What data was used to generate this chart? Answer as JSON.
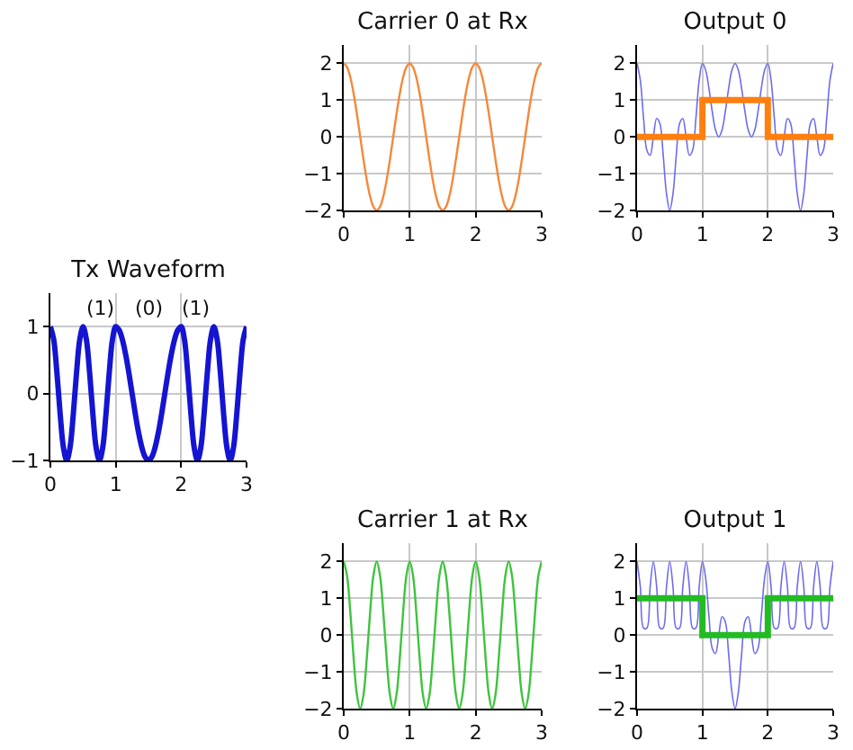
{
  "chart_data": [
    {
      "type": "line",
      "title": "Carrier 0 at Rx",
      "xlim": [
        0,
        3
      ],
      "xticks": [
        0,
        1,
        2,
        3
      ],
      "ylim": [
        -2,
        2.5
      ],
      "yticks": [
        -2,
        -1,
        0,
        1,
        2
      ],
      "grid": true,
      "x": [
        0,
        0.05,
        0.1,
        0.15,
        0.2,
        0.25,
        0.3,
        0.35,
        0.4,
        0.45,
        0.5,
        0.55,
        0.6,
        0.65,
        0.7,
        0.75,
        0.8,
        0.85,
        0.9,
        0.95,
        1,
        1.05,
        1.1,
        1.15,
        1.2,
        1.25,
        1.3,
        1.35,
        1.4,
        1.45,
        1.5,
        1.55,
        1.6,
        1.65,
        1.7,
        1.75,
        1.8,
        1.85,
        1.9,
        1.95,
        2,
        2.05,
        2.1,
        2.15,
        2.2,
        2.25,
        2.3,
        2.35,
        2.4,
        2.45,
        2.5,
        2.55,
        2.6,
        2.65,
        2.7,
        2.75,
        2.8,
        2.85,
        2.9,
        2.95,
        3
      ],
      "series": [
        {
          "color": "#f5883a",
          "values": [
            2,
            1.9,
            1.62,
            1.18,
            0.62,
            0,
            -0.62,
            -1.18,
            -1.62,
            -1.9,
            -2,
            -1.9,
            -1.62,
            -1.18,
            -0.62,
            0,
            0.62,
            1.18,
            1.62,
            1.9,
            2,
            1.9,
            1.62,
            1.18,
            0.62,
            0,
            -0.62,
            -1.18,
            -1.62,
            -1.9,
            -2,
            -1.9,
            -1.62,
            -1.18,
            -0.62,
            0,
            0.62,
            1.18,
            1.62,
            1.9,
            2,
            1.9,
            1.62,
            1.18,
            0.62,
            0,
            -0.62,
            -1.18,
            -1.62,
            -1.9,
            -2,
            -1.9,
            -1.62,
            -1.18,
            -0.62,
            0,
            0.62,
            1.18,
            1.62,
            1.9,
            2
          ]
        }
      ]
    },
    {
      "type": "line",
      "title": "Output 0",
      "xlim": [
        0,
        3
      ],
      "xticks": [
        0,
        1,
        2,
        3
      ],
      "ylim": [
        -2,
        2.5
      ],
      "yticks": [
        -2,
        -1,
        0,
        1,
        2
      ],
      "grid": true,
      "x": [
        0,
        0.05,
        0.1,
        0.15,
        0.2,
        0.25,
        0.3,
        0.35,
        0.4,
        0.45,
        0.5,
        0.55,
        0.6,
        0.65,
        0.7,
        0.75,
        0.8,
        0.85,
        0.9,
        0.95,
        1,
        1.05,
        1.1,
        1.15,
        1.2,
        1.25,
        1.3,
        1.35,
        1.4,
        1.45,
        1.5,
        1.55,
        1.6,
        1.65,
        1.7,
        1.75,
        1.8,
        1.85,
        1.9,
        1.95,
        2,
        2.05,
        2.1,
        2.15,
        2.2,
        2.25,
        2.3,
        2.35,
        2.4,
        2.45,
        2.5,
        2.55,
        2.6,
        2.65,
        2.7,
        2.75,
        2.8,
        2.85,
        2.9,
        2.95,
        3
      ],
      "series": [
        {
          "color": "#6b6bf0",
          "values": [
            2,
            1.54,
            0.5,
            -0.36,
            -0.5,
            0,
            0.5,
            0.36,
            -0.5,
            -1.54,
            -2,
            -1.54,
            -0.5,
            0.36,
            0.5,
            0,
            -0.5,
            -0.36,
            0.5,
            1.54,
            2,
            1.81,
            1.31,
            0.69,
            0.19,
            0,
            0.19,
            0.69,
            1.31,
            1.81,
            2,
            1.81,
            1.31,
            0.69,
            0.19,
            0,
            0.19,
            0.69,
            1.31,
            1.81,
            2,
            1.54,
            0.5,
            -0.36,
            -0.5,
            0,
            0.5,
            0.36,
            -0.5,
            -1.54,
            -2,
            -1.54,
            -0.5,
            0.36,
            0.5,
            0,
            -0.5,
            -0.36,
            0.5,
            1.54,
            2
          ]
        },
        {
          "type": "step",
          "color": "#ff7f0e",
          "x": [
            0,
            1,
            2,
            3
          ],
          "values": [
            0,
            1,
            0,
            0
          ]
        }
      ]
    },
    {
      "type": "line",
      "title": "Tx Waveform",
      "xlim": [
        0,
        3
      ],
      "xticks": [
        0,
        1,
        2,
        3
      ],
      "ylim": [
        -1,
        1.5
      ],
      "yticks": [
        -1,
        0,
        1
      ],
      "grid": true,
      "annotations": [
        "(1)",
        "(0)",
        "(1)"
      ],
      "x": [
        0,
        0.05,
        0.1,
        0.15,
        0.2,
        0.25,
        0.3,
        0.35,
        0.4,
        0.45,
        0.5,
        0.55,
        0.6,
        0.65,
        0.7,
        0.75,
        0.8,
        0.85,
        0.9,
        0.95,
        1,
        1.05,
        1.1,
        1.15,
        1.2,
        1.25,
        1.3,
        1.35,
        1.4,
        1.45,
        1.5,
        1.55,
        1.6,
        1.65,
        1.7,
        1.75,
        1.8,
        1.85,
        1.9,
        1.95,
        2,
        2.05,
        2.1,
        2.15,
        2.2,
        2.25,
        2.3,
        2.35,
        2.4,
        2.45,
        2.5,
        2.55,
        2.6,
        2.65,
        2.7,
        2.75,
        2.8,
        2.85,
        2.9,
        2.95,
        3
      ],
      "series": [
        {
          "color": "#1414d2",
          "values": [
            1,
            0.81,
            0.31,
            -0.31,
            -0.81,
            -1,
            -0.81,
            -0.31,
            0.31,
            0.81,
            1,
            0.81,
            0.31,
            -0.31,
            -0.81,
            -1,
            -0.81,
            -0.31,
            0.31,
            0.81,
            1,
            0.95,
            0.81,
            0.59,
            0.31,
            0,
            -0.31,
            -0.59,
            -0.81,
            -0.95,
            -1,
            -0.95,
            -0.81,
            -0.59,
            -0.31,
            0,
            0.31,
            0.59,
            0.81,
            0.95,
            1,
            0.81,
            0.31,
            -0.31,
            -0.81,
            -1,
            -0.81,
            -0.31,
            0.31,
            0.81,
            1,
            0.81,
            0.31,
            -0.31,
            -0.81,
            -1,
            -0.81,
            -0.31,
            0.31,
            0.81,
            1
          ]
        }
      ]
    },
    {
      "type": "line",
      "title": "Carrier 1 at Rx",
      "xlim": [
        0,
        3
      ],
      "xticks": [
        0,
        1,
        2,
        3
      ],
      "ylim": [
        -2,
        2.5
      ],
      "yticks": [
        -2,
        -1,
        0,
        1,
        2
      ],
      "grid": true,
      "x": [
        0,
        0.05,
        0.1,
        0.15,
        0.2,
        0.25,
        0.3,
        0.35,
        0.4,
        0.45,
        0.5,
        0.55,
        0.6,
        0.65,
        0.7,
        0.75,
        0.8,
        0.85,
        0.9,
        0.95,
        1,
        1.05,
        1.1,
        1.15,
        1.2,
        1.25,
        1.3,
        1.35,
        1.4,
        1.45,
        1.5,
        1.55,
        1.6,
        1.65,
        1.7,
        1.75,
        1.8,
        1.85,
        1.9,
        1.95,
        2,
        2.05,
        2.1,
        2.15,
        2.2,
        2.25,
        2.3,
        2.35,
        2.4,
        2.45,
        2.5,
        2.55,
        2.6,
        2.65,
        2.7,
        2.75,
        2.8,
        2.85,
        2.9,
        2.95,
        3
      ],
      "series": [
        {
          "color": "#3ec43e",
          "values": [
            2,
            1.62,
            0.62,
            -0.62,
            -1.62,
            -2,
            -1.62,
            -0.62,
            0.62,
            1.62,
            2,
            1.62,
            0.62,
            -0.62,
            -1.62,
            -2,
            -1.62,
            -0.62,
            0.62,
            1.62,
            2,
            1.62,
            0.62,
            -0.62,
            -1.62,
            -2,
            -1.62,
            -0.62,
            0.62,
            1.62,
            2,
            1.62,
            0.62,
            -0.62,
            -1.62,
            -2,
            -1.62,
            -0.62,
            0.62,
            1.62,
            2,
            1.62,
            0.62,
            -0.62,
            -1.62,
            -2,
            -1.62,
            -0.62,
            0.62,
            1.62,
            2,
            1.62,
            0.62,
            -0.62,
            -1.62,
            -2,
            -1.62,
            -0.62,
            0.62,
            1.62,
            2
          ]
        }
      ]
    },
    {
      "type": "line",
      "title": "Output 1",
      "xlim": [
        0,
        3
      ],
      "xticks": [
        0,
        1,
        2,
        3
      ],
      "ylim": [
        -2,
        2.5
      ],
      "yticks": [
        -2,
        -1,
        0,
        1,
        2
      ],
      "grid": true,
      "x": [
        0,
        0.05,
        0.1,
        0.15,
        0.2,
        0.25,
        0.3,
        0.35,
        0.4,
        0.45,
        0.5,
        0.55,
        0.6,
        0.65,
        0.7,
        0.75,
        0.8,
        0.85,
        0.9,
        0.95,
        1,
        1.05,
        1.1,
        1.15,
        1.2,
        1.25,
        1.3,
        1.35,
        1.4,
        1.45,
        1.5,
        1.55,
        1.6,
        1.65,
        1.7,
        1.75,
        1.8,
        1.85,
        1.9,
        1.95,
        2,
        2.05,
        2.1,
        2.15,
        2.2,
        2.25,
        2.3,
        2.35,
        2.4,
        2.45,
        2.5,
        2.55,
        2.6,
        2.65,
        2.7,
        2.75,
        2.8,
        2.85,
        2.9,
        2.95,
        3
      ],
      "series": [
        {
          "color": "#6b6bf0",
          "values": [
            2,
            1.31,
            0.19,
            0.19,
            1.31,
            2,
            1.31,
            0.19,
            0.19,
            1.31,
            2,
            1.31,
            0.19,
            0.19,
            1.31,
            2,
            1.31,
            0.19,
            0.19,
            1.31,
            2,
            1.54,
            0.5,
            -0.36,
            -0.5,
            0,
            0.5,
            0.36,
            -0.5,
            -1.54,
            -2,
            -1.54,
            -0.5,
            0.36,
            0.5,
            0,
            -0.5,
            -0.36,
            0.5,
            1.54,
            2,
            1.31,
            0.19,
            0.19,
            1.31,
            2,
            1.31,
            0.19,
            0.19,
            1.31,
            2,
            1.31,
            0.19,
            0.19,
            1.31,
            2,
            1.31,
            0.19,
            0.19,
            1.31,
            2
          ]
        },
        {
          "type": "step",
          "color": "#22bb22",
          "x": [
            0,
            1,
            2,
            3
          ],
          "values": [
            1,
            0,
            1,
            1
          ]
        }
      ]
    }
  ]
}
